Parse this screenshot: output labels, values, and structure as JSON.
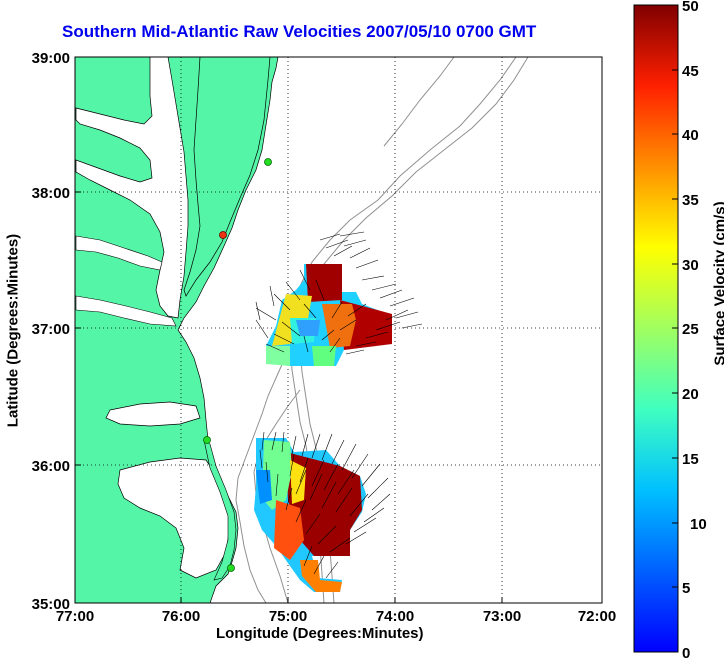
{
  "title": "Southern Mid-Atlantic Raw Velocities 2007/05/10 0700 GMT",
  "axes": {
    "xlabel": "Longitude (Degrees:Minutes)",
    "ylabel": "Latitude (Degrees:Minutes)",
    "x_ticks": [
      "77:00",
      "76:00",
      "75:00",
      "74:00",
      "73:00",
      "72:00"
    ],
    "y_ticks": [
      "39:00",
      "38:00",
      "37:00",
      "36:00",
      "35:00"
    ]
  },
  "colorbar": {
    "label": "Surface Velocity (cm/s)",
    "ticks": [
      "50",
      "45",
      "40",
      "35",
      "30",
      "25",
      "20",
      "15",
      "10",
      "5",
      "0"
    ],
    "range": [
      0,
      50
    ]
  },
  "colors": {
    "land": "#55f5a8",
    "title": "#0000ee",
    "bathymetry": "#909090",
    "station_green": "#22dd22",
    "station_red": "#ee3311"
  }
}
